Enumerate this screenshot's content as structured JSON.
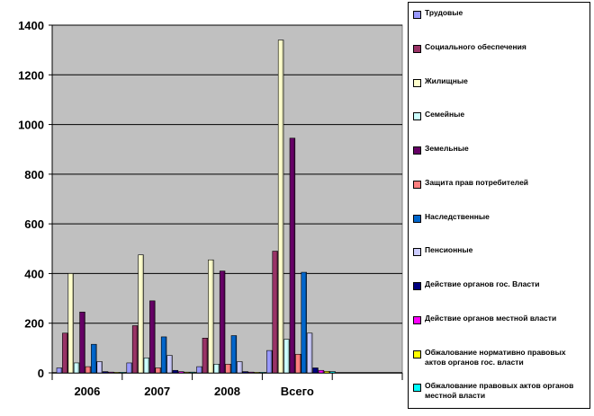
{
  "chart_data": {
    "type": "bar",
    "categories": [
      "2006",
      "2007",
      "2008",
      "Всего"
    ],
    "ylim": [
      0,
      1400
    ],
    "yticks": [
      0,
      200,
      400,
      600,
      800,
      1000,
      1200,
      1400
    ],
    "grid": true,
    "legend_position": "right",
    "plot_background": "#c0c0c0",
    "series": [
      {
        "name": "Трудовые",
        "color": "#9999ff",
        "values": [
          20,
          40,
          25,
          90
        ]
      },
      {
        "name": "Социального обеспечения",
        "color": "#993366",
        "values": [
          160,
          190,
          140,
          490
        ]
      },
      {
        "name": "Жилищные",
        "color": "#ffffcc",
        "values": [
          400,
          475,
          455,
          1340
        ]
      },
      {
        "name": "Семейные",
        "color": "#ccffff",
        "values": [
          40,
          60,
          35,
          135
        ]
      },
      {
        "name": "Земельные",
        "color": "#660066",
        "values": [
          245,
          290,
          410,
          945
        ]
      },
      {
        "name": "Защита прав потребителей",
        "color": "#ff8080",
        "values": [
          25,
          20,
          35,
          75
        ]
      },
      {
        "name": "Наследственные",
        "color": "#0066cc",
        "values": [
          115,
          145,
          150,
          405
        ]
      },
      {
        "name": "Пенсионные",
        "color": "#ccccff",
        "values": [
          45,
          70,
          45,
          160
        ]
      },
      {
        "name": "Действие органов гос. Власти",
        "color": "#000080",
        "values": [
          5,
          10,
          5,
          20
        ]
      },
      {
        "name": "Действие органов местной власти",
        "color": "#ff00ff",
        "values": [
          3,
          5,
          3,
          10
        ]
      },
      {
        "name": "Обжалование нормативно правовых актов органов гос. власти",
        "color": "#ffff00",
        "values": [
          2,
          3,
          2,
          6
        ]
      },
      {
        "name": "Обжалование правовых актов органов местной власти",
        "color": "#00ffff",
        "values": [
          2,
          3,
          2,
          5
        ]
      }
    ]
  }
}
